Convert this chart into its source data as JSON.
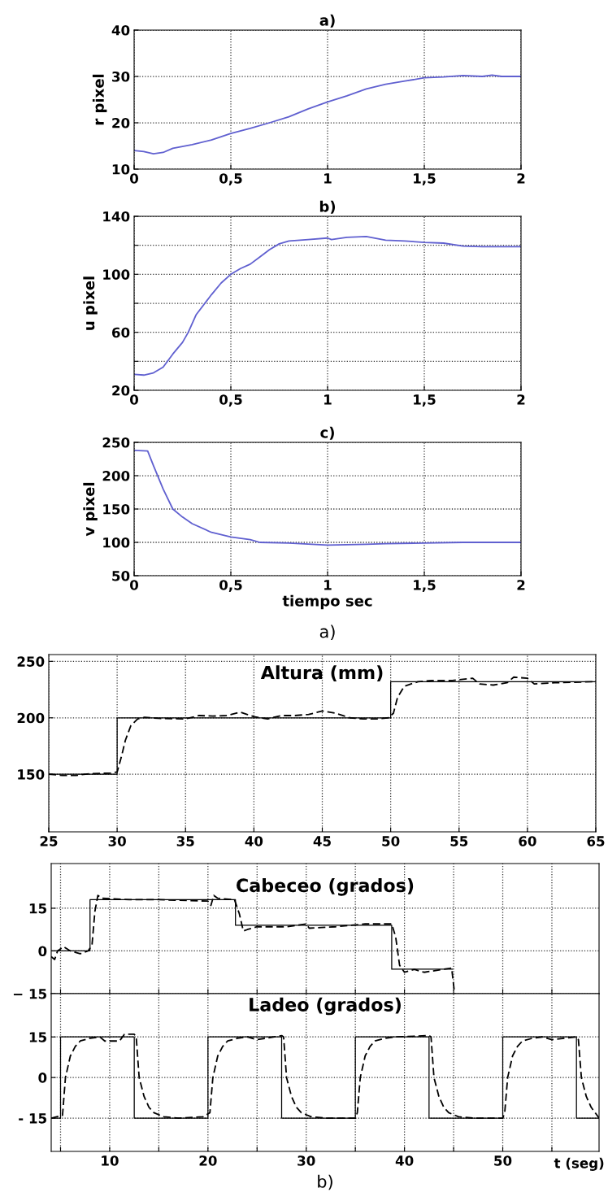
{
  "chart_data": [
    {
      "type": "line",
      "title": "a)",
      "ylabel": "r pixel",
      "xlim": [
        0,
        2
      ],
      "ylim": [
        10,
        40
      ],
      "xticks": [
        0,
        {
          "value": 0.5,
          "label": "0,5"
        },
        1,
        {
          "value": 1.5,
          "label": "1,5"
        },
        2
      ],
      "yticks": [
        10,
        20,
        30,
        40
      ],
      "grid": true,
      "series": [
        {
          "color": "#6060d0",
          "x": [
            0,
            0.05,
            0.1,
            0.15,
            0.2,
            0.3,
            0.4,
            0.5,
            0.6,
            0.7,
            0.8,
            0.9,
            1.0,
            1.1,
            1.2,
            1.3,
            1.4,
            1.5,
            1.6,
            1.7,
            1.8,
            1.85,
            1.9,
            2.0
          ],
          "values": [
            14,
            13.8,
            13.3,
            13.6,
            14.5,
            15.3,
            16.3,
            17.7,
            18.8,
            20,
            21.3,
            23,
            24.5,
            25.8,
            27.3,
            28.3,
            29,
            29.7,
            29.9,
            30.2,
            30,
            30.3,
            30,
            30
          ]
        }
      ]
    },
    {
      "type": "line",
      "title": "b)",
      "ylabel": "u pixel",
      "xlim": [
        0,
        2
      ],
      "ylim": [
        20,
        140
      ],
      "xticks": [
        0,
        {
          "value": 0.5,
          "label": "0,5"
        },
        1,
        {
          "value": 1.5,
          "label": "1,5"
        },
        2
      ],
      "yticks": [
        20,
        {
          "value": 40,
          "label": null
        },
        60,
        {
          "value": 80,
          "label": null
        },
        100,
        {
          "value": 120,
          "label": null
        },
        140
      ],
      "grid": true,
      "series": [
        {
          "color": "#6060d0",
          "x": [
            0,
            0.05,
            0.1,
            0.15,
            0.2,
            0.25,
            0.28,
            0.32,
            0.4,
            0.45,
            0.5,
            0.55,
            0.6,
            0.65,
            0.7,
            0.75,
            0.8,
            0.9,
            1.0,
            1.02,
            1.1,
            1.2,
            1.3,
            1.4,
            1.5,
            1.6,
            1.7,
            1.8,
            2.0
          ],
          "values": [
            31,
            30.5,
            32,
            36,
            45,
            53,
            60,
            72,
            86,
            94,
            100,
            104,
            107,
            112,
            117,
            121,
            123,
            124,
            125,
            124,
            125.5,
            126,
            123.5,
            123,
            122,
            121.5,
            119.5,
            119,
            119
          ]
        }
      ]
    },
    {
      "type": "line",
      "title": "c)",
      "ylabel": "v pixel",
      "xlabel": "tiempo sec",
      "xlim": [
        0,
        2
      ],
      "ylim": [
        50,
        250
      ],
      "xticks": [
        0,
        {
          "value": 0.5,
          "label": "0,5"
        },
        1,
        {
          "value": 1.5,
          "label": "1,5"
        },
        2
      ],
      "yticks": [
        50,
        100,
        150,
        200,
        250
      ],
      "grid": true,
      "annotations": [
        "a)"
      ],
      "series": [
        {
          "color": "#6060d0",
          "x": [
            0,
            0.07,
            0.1,
            0.15,
            0.2,
            0.25,
            0.3,
            0.4,
            0.5,
            0.6,
            0.65,
            0.8,
            1.0,
            1.2,
            1.3,
            1.5,
            1.7,
            2.0
          ],
          "values": [
            238,
            237,
            215,
            180,
            150,
            138,
            128,
            115,
            108,
            104,
            100,
            99,
            96,
            97,
            98,
            99,
            100,
            100
          ]
        }
      ]
    },
    {
      "type": "line",
      "title": "Altura (mm)",
      "xlim": [
        25,
        65
      ],
      "ylim": [
        99,
        256
      ],
      "xticks": [
        25,
        30,
        35,
        40,
        45,
        50,
        55,
        60,
        65
      ],
      "yticks": [
        150,
        200,
        250
      ],
      "grid": true,
      "series": [
        {
          "type": "step",
          "color": "#000000",
          "line_style": "solid",
          "x": [
            25,
            30,
            50,
            65
          ],
          "values": [
            150,
            200,
            232,
            232
          ]
        },
        {
          "type": "line",
          "color": "#000000",
          "line_style": "dashed",
          "x": [
            25,
            26,
            27,
            28,
            29.5,
            30.0,
            30.3,
            30.6,
            31,
            31.5,
            32,
            33,
            35,
            36,
            37,
            38,
            39,
            39.5,
            40,
            41,
            42,
            43,
            44,
            45,
            46,
            47,
            48,
            49,
            49.8,
            50.2,
            50.5,
            51,
            52,
            53,
            54.5,
            56,
            56.5,
            57.5,
            58.5,
            59,
            60,
            60.5,
            62,
            65
          ],
          "values": [
            150,
            149,
            149,
            150.5,
            151,
            152,
            165,
            180,
            193,
            199,
            200.5,
            199.5,
            199,
            202,
            201.5,
            202,
            205,
            203,
            201,
            199,
            202,
            202,
            203,
            206,
            204,
            200,
            199,
            199,
            200,
            204,
            218,
            228,
            232,
            233,
            233,
            235,
            230,
            229,
            231,
            236,
            235,
            230,
            231,
            232
          ]
        }
      ]
    },
    {
      "type": "line",
      "title": "Cabeceo (grados)",
      "xlim": [
        4.05,
        59.8
      ],
      "ylim": [
        -15,
        30.7
      ],
      "xticks": [
        5,
        10,
        15,
        20,
        25,
        30,
        35,
        40,
        45,
        50,
        55
      ],
      "yticks": [
        {
          "value": -15,
          "label": "− 15"
        },
        0,
        15
      ],
      "grid": true,
      "tick_labels": "y",
      "series": [
        {
          "type": "step",
          "color": "#000000",
          "line_style": "solid",
          "x": [
            4.05,
            8,
            22.8,
            38.7,
            44.9
          ],
          "values": [
            0,
            18,
            9,
            -6.4,
            -6.4
          ]
        },
        {
          "type": "line",
          "color": "#000000",
          "line_style": "dashed",
          "x": [
            4.05,
            4.4,
            4.7,
            5.3,
            6,
            7,
            7.8,
            8.2,
            8.5,
            8.8,
            9.2,
            12,
            15,
            20,
            20.3,
            20.6,
            21,
            22.7,
            23.2,
            23.6,
            24,
            25,
            28,
            30,
            30.3,
            33,
            36,
            38.7,
            39.1,
            39.5,
            40,
            41,
            42,
            44.8,
            45.1
          ],
          "values": [
            -2,
            -3,
            0,
            1.5,
            0,
            -1,
            0,
            2,
            14,
            19.5,
            18.5,
            18,
            18,
            17.5,
            16,
            19.5,
            18.5,
            18,
            13,
            7,
            7.5,
            8.5,
            8.5,
            9.5,
            8,
            8.5,
            9.5,
            9.5,
            5,
            -5,
            -7.5,
            -6.5,
            -7.5,
            -6,
            -15
          ]
        }
      ]
    },
    {
      "type": "line",
      "title": "Ladeo (grados)",
      "xlabel": "t (seg)",
      "xlim": [
        4.05,
        59.8
      ],
      "ylim": [
        -27.3,
        31
      ],
      "xticks": [
        {
          "value": 5,
          "label": null
        },
        10,
        {
          "value": 15,
          "label": null
        },
        20,
        {
          "value": 25,
          "label": null
        },
        30,
        {
          "value": 35,
          "label": null
        },
        40,
        {
          "value": 45,
          "label": null
        },
        50,
        {
          "value": 55,
          "label": null
        }
      ],
      "yticks": [
        {
          "value": -15,
          "label": "- 15"
        },
        0,
        15
      ],
      "grid": true,
      "annotations": [
        "b)"
      ],
      "series": [
        {
          "type": "step",
          "color": "#000000",
          "line_style": "solid",
          "x": [
            4.05,
            5,
            12.5,
            20,
            27.5,
            35,
            42.5,
            50,
            57.5,
            59.8
          ],
          "values": [
            -15,
            15,
            -15,
            15,
            -15,
            15,
            -15,
            15,
            -15,
            -15
          ]
        },
        {
          "type": "line",
          "color": "#000000",
          "line_style": "dashed",
          "x": [
            4.05,
            5.2,
            5.5,
            6,
            6.5,
            7,
            8,
            9,
            9.5,
            11,
            11.5,
            12.5,
            12.7,
            13,
            13.5,
            14,
            14.5,
            15.5,
            17,
            19.5,
            20.2,
            20.5,
            21,
            21.5,
            22,
            23,
            24,
            25,
            27.5,
            27.7,
            28,
            28.5,
            29,
            29.5,
            30.5,
            32,
            35,
            35.2,
            35.5,
            36,
            36.5,
            37,
            38,
            39,
            42.5,
            42.7,
            43,
            43.5,
            44,
            44.5,
            45.5,
            47,
            50,
            50.2,
            50.5,
            51,
            51.5,
            52,
            53,
            54,
            55,
            57.5,
            57.7,
            58,
            58.5,
            59,
            59.8
          ],
          "values": [
            -15,
            -14,
            0,
            8,
            11.5,
            13.5,
            14.5,
            15,
            13.5,
            13.5,
            16,
            16,
            15,
            0,
            -7,
            -11,
            -13,
            -14.5,
            -15,
            -14.5,
            -13,
            0,
            8,
            11.5,
            13.5,
            14.5,
            15,
            14,
            15.5,
            15,
            0,
            -7,
            -11,
            -13,
            -14.5,
            -15,
            -15,
            -13,
            0,
            8,
            11.5,
            13.5,
            14.5,
            15,
            15.5,
            15,
            0,
            -7,
            -11,
            -13,
            -14.5,
            -15,
            -15,
            -13,
            0,
            8,
            11.5,
            13.5,
            14.5,
            15,
            14,
            15,
            14,
            0,
            -7,
            -11,
            -15
          ]
        }
      ]
    }
  ]
}
